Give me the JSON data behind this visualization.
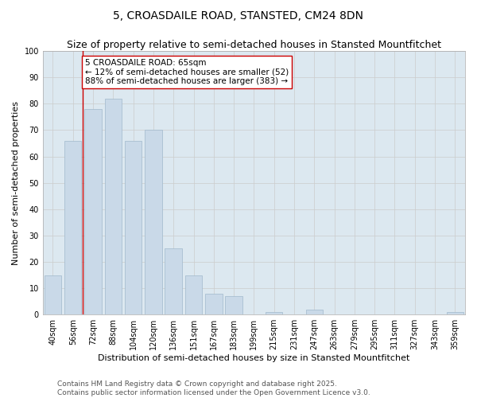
{
  "title": "5, CROASDAILE ROAD, STANSTED, CM24 8DN",
  "subtitle": "Size of property relative to semi-detached houses in Stansted Mountfitchet",
  "xlabel": "Distribution of semi-detached houses by size in Stansted Mountfitchet",
  "ylabel": "Number of semi-detached properties",
  "categories": [
    "40sqm",
    "56sqm",
    "72sqm",
    "88sqm",
    "104sqm",
    "120sqm",
    "136sqm",
    "151sqm",
    "167sqm",
    "183sqm",
    "199sqm",
    "215sqm",
    "231sqm",
    "247sqm",
    "263sqm",
    "279sqm",
    "295sqm",
    "311sqm",
    "327sqm",
    "343sqm",
    "359sqm"
  ],
  "values": [
    15,
    66,
    78,
    82,
    66,
    70,
    25,
    15,
    8,
    7,
    0,
    1,
    0,
    2,
    0,
    0,
    0,
    0,
    0,
    0,
    1
  ],
  "bar_color": "#c9d9e8",
  "bar_edge_color": "#a0b8cc",
  "property_line_color": "#cc0000",
  "annotation_text": "5 CROASDAILE ROAD: 65sqm\n← 12% of semi-detached houses are smaller (52)\n88% of semi-detached houses are larger (383) →",
  "annotation_box_color": "#ffffff",
  "annotation_box_edge": "#cc0000",
  "ylim": [
    0,
    100
  ],
  "yticks": [
    0,
    10,
    20,
    30,
    40,
    50,
    60,
    70,
    80,
    90,
    100
  ],
  "grid_color": "#cccccc",
  "background_color": "#dce8f0",
  "footer": "Contains HM Land Registry data © Crown copyright and database right 2025.\nContains public sector information licensed under the Open Government Licence v3.0.",
  "title_fontsize": 10,
  "subtitle_fontsize": 9,
  "xlabel_fontsize": 8,
  "ylabel_fontsize": 8,
  "tick_fontsize": 7,
  "annotation_fontsize": 7.5,
  "footer_fontsize": 6.5
}
